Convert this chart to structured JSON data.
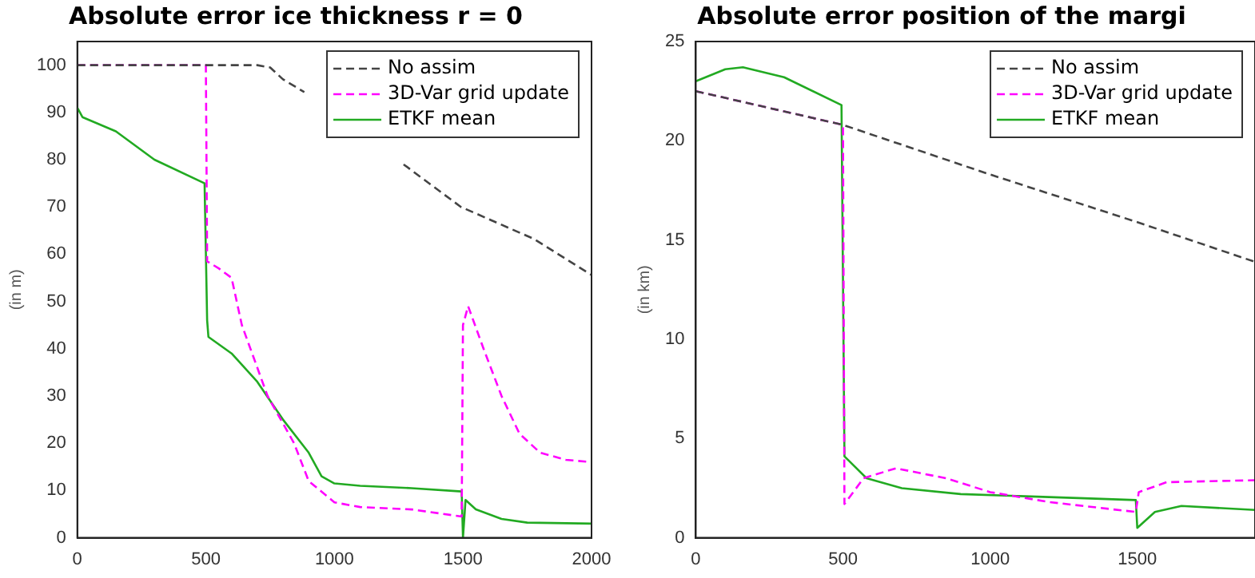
{
  "chart_data": [
    {
      "type": "line",
      "title": "Absolute error ice thickness r = 0",
      "ylabel": "(in m)",
      "xlim": [
        0,
        2000
      ],
      "xticks": [
        0,
        500,
        1000,
        1500,
        2000
      ],
      "ylim": [
        0,
        105
      ],
      "yticks": [
        0,
        10,
        20,
        30,
        40,
        50,
        60,
        70,
        80,
        90,
        100
      ],
      "grid": false,
      "legend": "top right",
      "marker": "none",
      "series": [
        {
          "name": "No assim",
          "color": "#444444",
          "line_style": "dashed",
          "x": [
            0,
            700,
            750,
            800,
            883,
            1000,
            1269,
            1492,
            1777,
            2000
          ],
          "values": [
            100,
            100,
            99.5,
            97,
            94.3,
            null,
            79,
            70,
            63.2,
            55.6
          ]
        },
        {
          "name": "3D-Var grid update",
          "color": "#ff00ff",
          "line_style": "dashed",
          "x": [
            0,
            500,
            505,
            550,
            600,
            640,
            740,
            843,
            900,
            1000,
            1100,
            1300,
            1495,
            1500,
            1520,
            1580,
            1650,
            1720,
            1800,
            1900,
            2000
          ],
          "values": [
            100,
            100,
            58.5,
            57,
            55,
            45,
            30,
            20,
            12,
            7.5,
            6.5,
            6,
            4.5,
            45,
            49,
            40,
            30,
            22,
            18,
            16.5,
            16
          ]
        },
        {
          "name": "ETKF mean",
          "color": "#22aa22",
          "line_style": "solid",
          "x": [
            0,
            20,
            150,
            300,
            495,
            505,
            510,
            600,
            700,
            800,
            900,
            950,
            1000,
            1100,
            1300,
            1495,
            1500,
            1510,
            1550,
            1650,
            1750,
            2000
          ],
          "values": [
            91,
            89,
            86,
            80,
            75,
            46,
            42.5,
            39,
            33,
            25,
            18,
            13,
            11.5,
            11,
            10.5,
            9.8,
            0,
            8,
            6,
            4,
            3.2,
            3
          ]
        }
      ]
    },
    {
      "type": "line",
      "title": "Absolute error position of the margi",
      "ylabel": "(in km)",
      "xlim": [
        0,
        1900
      ],
      "xticks": [
        0,
        500,
        1000,
        1500
      ],
      "ylim": [
        0,
        25
      ],
      "yticks": [
        0,
        5,
        10,
        15,
        20,
        25
      ],
      "grid": false,
      "legend": "top right",
      "marker": "none",
      "series": [
        {
          "name": "No assim",
          "color": "#444444",
          "line_style": "dashed",
          "x": [
            0,
            500,
            1000,
            1500,
            1900
          ],
          "values": [
            22.5,
            20.8,
            18.3,
            15.9,
            13.9
          ]
        },
        {
          "name": "3D-Var grid update",
          "color": "#ff00ff",
          "line_style": "dashed",
          "x": [
            0,
            500,
            505,
            570,
            680,
            850,
            1000,
            1200,
            1495,
            1505,
            1600,
            1900
          ],
          "values": [
            22.5,
            20.8,
            1.7,
            3,
            3.5,
            3,
            2.3,
            1.8,
            1.3,
            2.3,
            2.8,
            2.9
          ]
        },
        {
          "name": "ETKF mean",
          "color": "#22aa22",
          "line_style": "solid",
          "x": [
            0,
            100,
            160,
            300,
            495,
            505,
            580,
            700,
            900,
            1100,
            1300,
            1495,
            1500,
            1560,
            1650,
            1900
          ],
          "values": [
            23,
            23.6,
            23.7,
            23.2,
            21.8,
            4.1,
            3,
            2.5,
            2.2,
            2.1,
            2,
            1.9,
            0.5,
            1.3,
            1.6,
            1.4
          ]
        }
      ]
    }
  ]
}
